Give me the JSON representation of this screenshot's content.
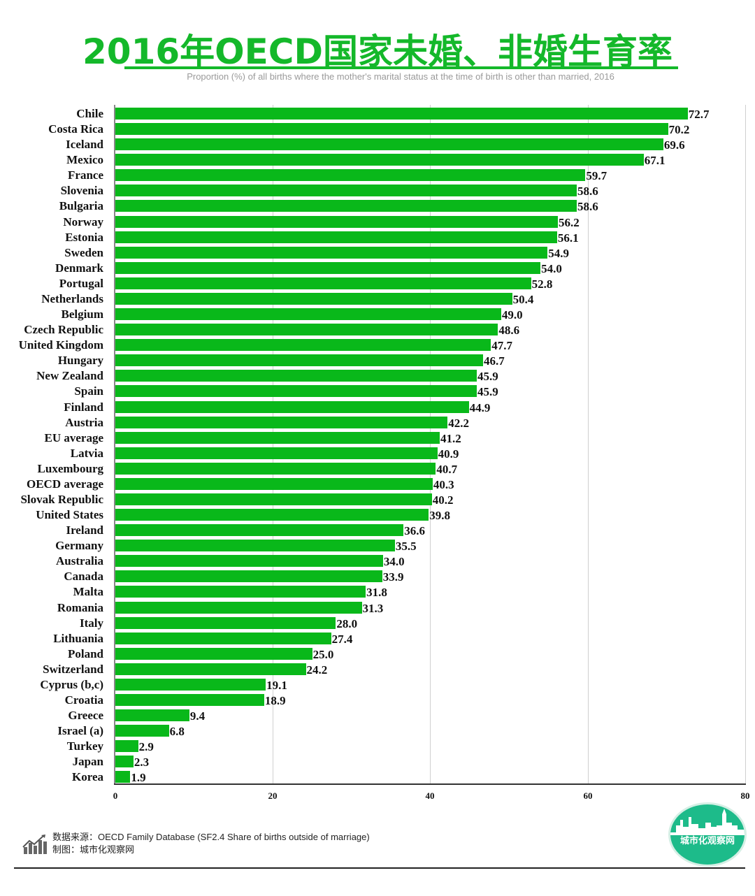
{
  "header": {
    "title": "2016年OECD国家未婚、非婚生育率",
    "subtitle": "Proportion (%) of all births where the mother's marital status at the time of birth is other than married, 2016"
  },
  "footer": {
    "source": "数据来源：OECD Family Database (SF2.4 Share of births outside of marriage)",
    "credit": "制图：城市化观察网",
    "logo_text": "城市化观察网"
  },
  "colors": {
    "bar": "#09b81a",
    "title": "#14b82a",
    "logo": "#1dbb8a"
  },
  "chart_data": {
    "type": "bar",
    "orientation": "horizontal",
    "title": "2016年OECD国家未婚、非婚生育率",
    "subtitle": "Proportion (%) of all births where the mother's marital status at the time of birth is other than married, 2016",
    "xlabel": "",
    "ylabel": "",
    "xlim": [
      0,
      80
    ],
    "xticks": [
      "0",
      "20",
      "40",
      "60",
      "80"
    ],
    "grid": true,
    "legend": null,
    "data_labels": true,
    "categories": [
      "Chile",
      "Costa Rica",
      "Iceland",
      "Mexico",
      "France",
      "Slovenia",
      "Bulgaria",
      "Norway",
      "Estonia",
      "Sweden",
      "Denmark",
      "Portugal",
      "Netherlands",
      "Belgium",
      "Czech Republic",
      "United Kingdom",
      "Hungary",
      "New Zealand",
      "Spain",
      "Finland",
      "Austria",
      "EU average",
      "Latvia",
      "Luxembourg",
      "OECD average",
      "Slovak Republic",
      "United States",
      "Ireland",
      "Germany",
      "Australia",
      "Canada",
      "Malta",
      "Romania",
      "Italy",
      "Lithuania",
      "Poland",
      "Switzerland",
      "Cyprus (b,c)",
      "Croatia",
      "Greece",
      "Israel (a)",
      "Turkey",
      "Japan",
      "Korea"
    ],
    "values": [
      72.7,
      70.2,
      69.6,
      67.1,
      59.7,
      58.6,
      58.6,
      56.2,
      56.1,
      54.9,
      54.0,
      52.8,
      50.4,
      49.0,
      48.6,
      47.7,
      46.7,
      45.9,
      45.9,
      44.9,
      42.2,
      41.2,
      40.9,
      40.7,
      40.3,
      40.2,
      39.8,
      36.6,
      35.5,
      34.0,
      33.9,
      31.8,
      31.3,
      28.0,
      27.4,
      25.0,
      24.2,
      19.1,
      18.9,
      9.4,
      6.8,
      2.9,
      2.3,
      1.9
    ],
    "value_labels": [
      "72.7",
      "70.2",
      "69.6",
      "67.1",
      "59.7",
      "58.6",
      "58.6",
      "56.2",
      "56.1",
      "54.9",
      "54.0",
      "52.8",
      "50.4",
      "49.0",
      "48.6",
      "47.7",
      "46.7",
      "45.9",
      "45.9",
      "44.9",
      "42.2",
      "41.2",
      "40.9",
      "40.7",
      "40.3",
      "40.2",
      "39.8",
      "36.6",
      "35.5",
      "34.0",
      "33.9",
      "31.8",
      "31.3",
      "28.0",
      "27.4",
      "25.0",
      "24.2",
      "19.1",
      "18.9",
      "9.4",
      "6.8",
      "2.9",
      "2.3",
      "1.9"
    ]
  }
}
